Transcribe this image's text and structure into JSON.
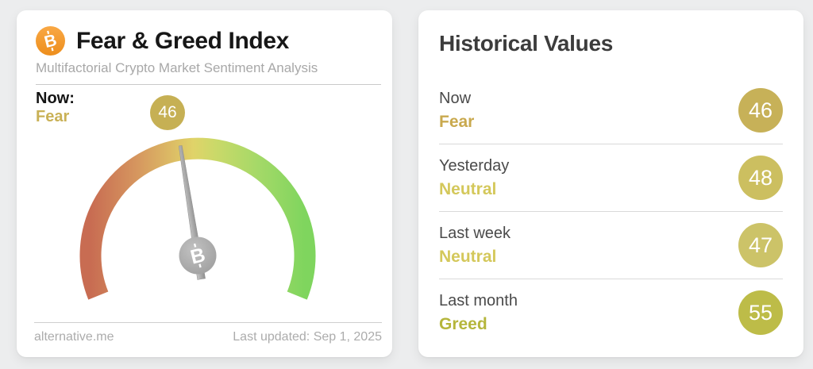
{
  "page": {
    "background_color": "#ECEDEE"
  },
  "left_card": {
    "title": "Fear & Greed Index",
    "subtitle": "Multifactorial Crypto Market Sentiment Analysis",
    "now": {
      "label": "Now:",
      "classification": "Fear",
      "classification_color": "#C9B156",
      "value": "46",
      "badge_color": "#C6B054"
    },
    "footer": {
      "site": "alternative.me",
      "last_updated": "Last updated: Sep 1, 2025"
    }
  },
  "gauge": {
    "type": "gauge",
    "value": 46,
    "min": 0,
    "max": 100,
    "start_angle_deg": 202,
    "end_angle_deg": -22,
    "arc_gradient": [
      "#C86C52",
      "#D6975F",
      "#E0D369",
      "#A5D968",
      "#7FD55E"
    ],
    "needle_color": "#A6A6A6",
    "hub_color": "#A9A9A9",
    "hub_icon": "bitcoin-icon"
  },
  "right_card": {
    "title": "Historical Values",
    "rows": [
      {
        "label": "Now",
        "classification": "Fear",
        "classification_color": "#C9A94E",
        "value": "46",
        "badge_color": "#C7B158"
      },
      {
        "label": "Yesterday",
        "classification": "Neutral",
        "classification_color": "#D4C85B",
        "value": "48",
        "badge_color": "#CCBF60"
      },
      {
        "label": "Last week",
        "classification": "Neutral",
        "classification_color": "#D4C85B",
        "value": "47",
        "badge_color": "#CCC368"
      },
      {
        "label": "Last month",
        "classification": "Greed",
        "classification_color": "#B5B63C",
        "value": "55",
        "badge_color": "#BDBC48"
      }
    ]
  },
  "brand": {
    "bitcoin_orange": "#F7931A"
  }
}
